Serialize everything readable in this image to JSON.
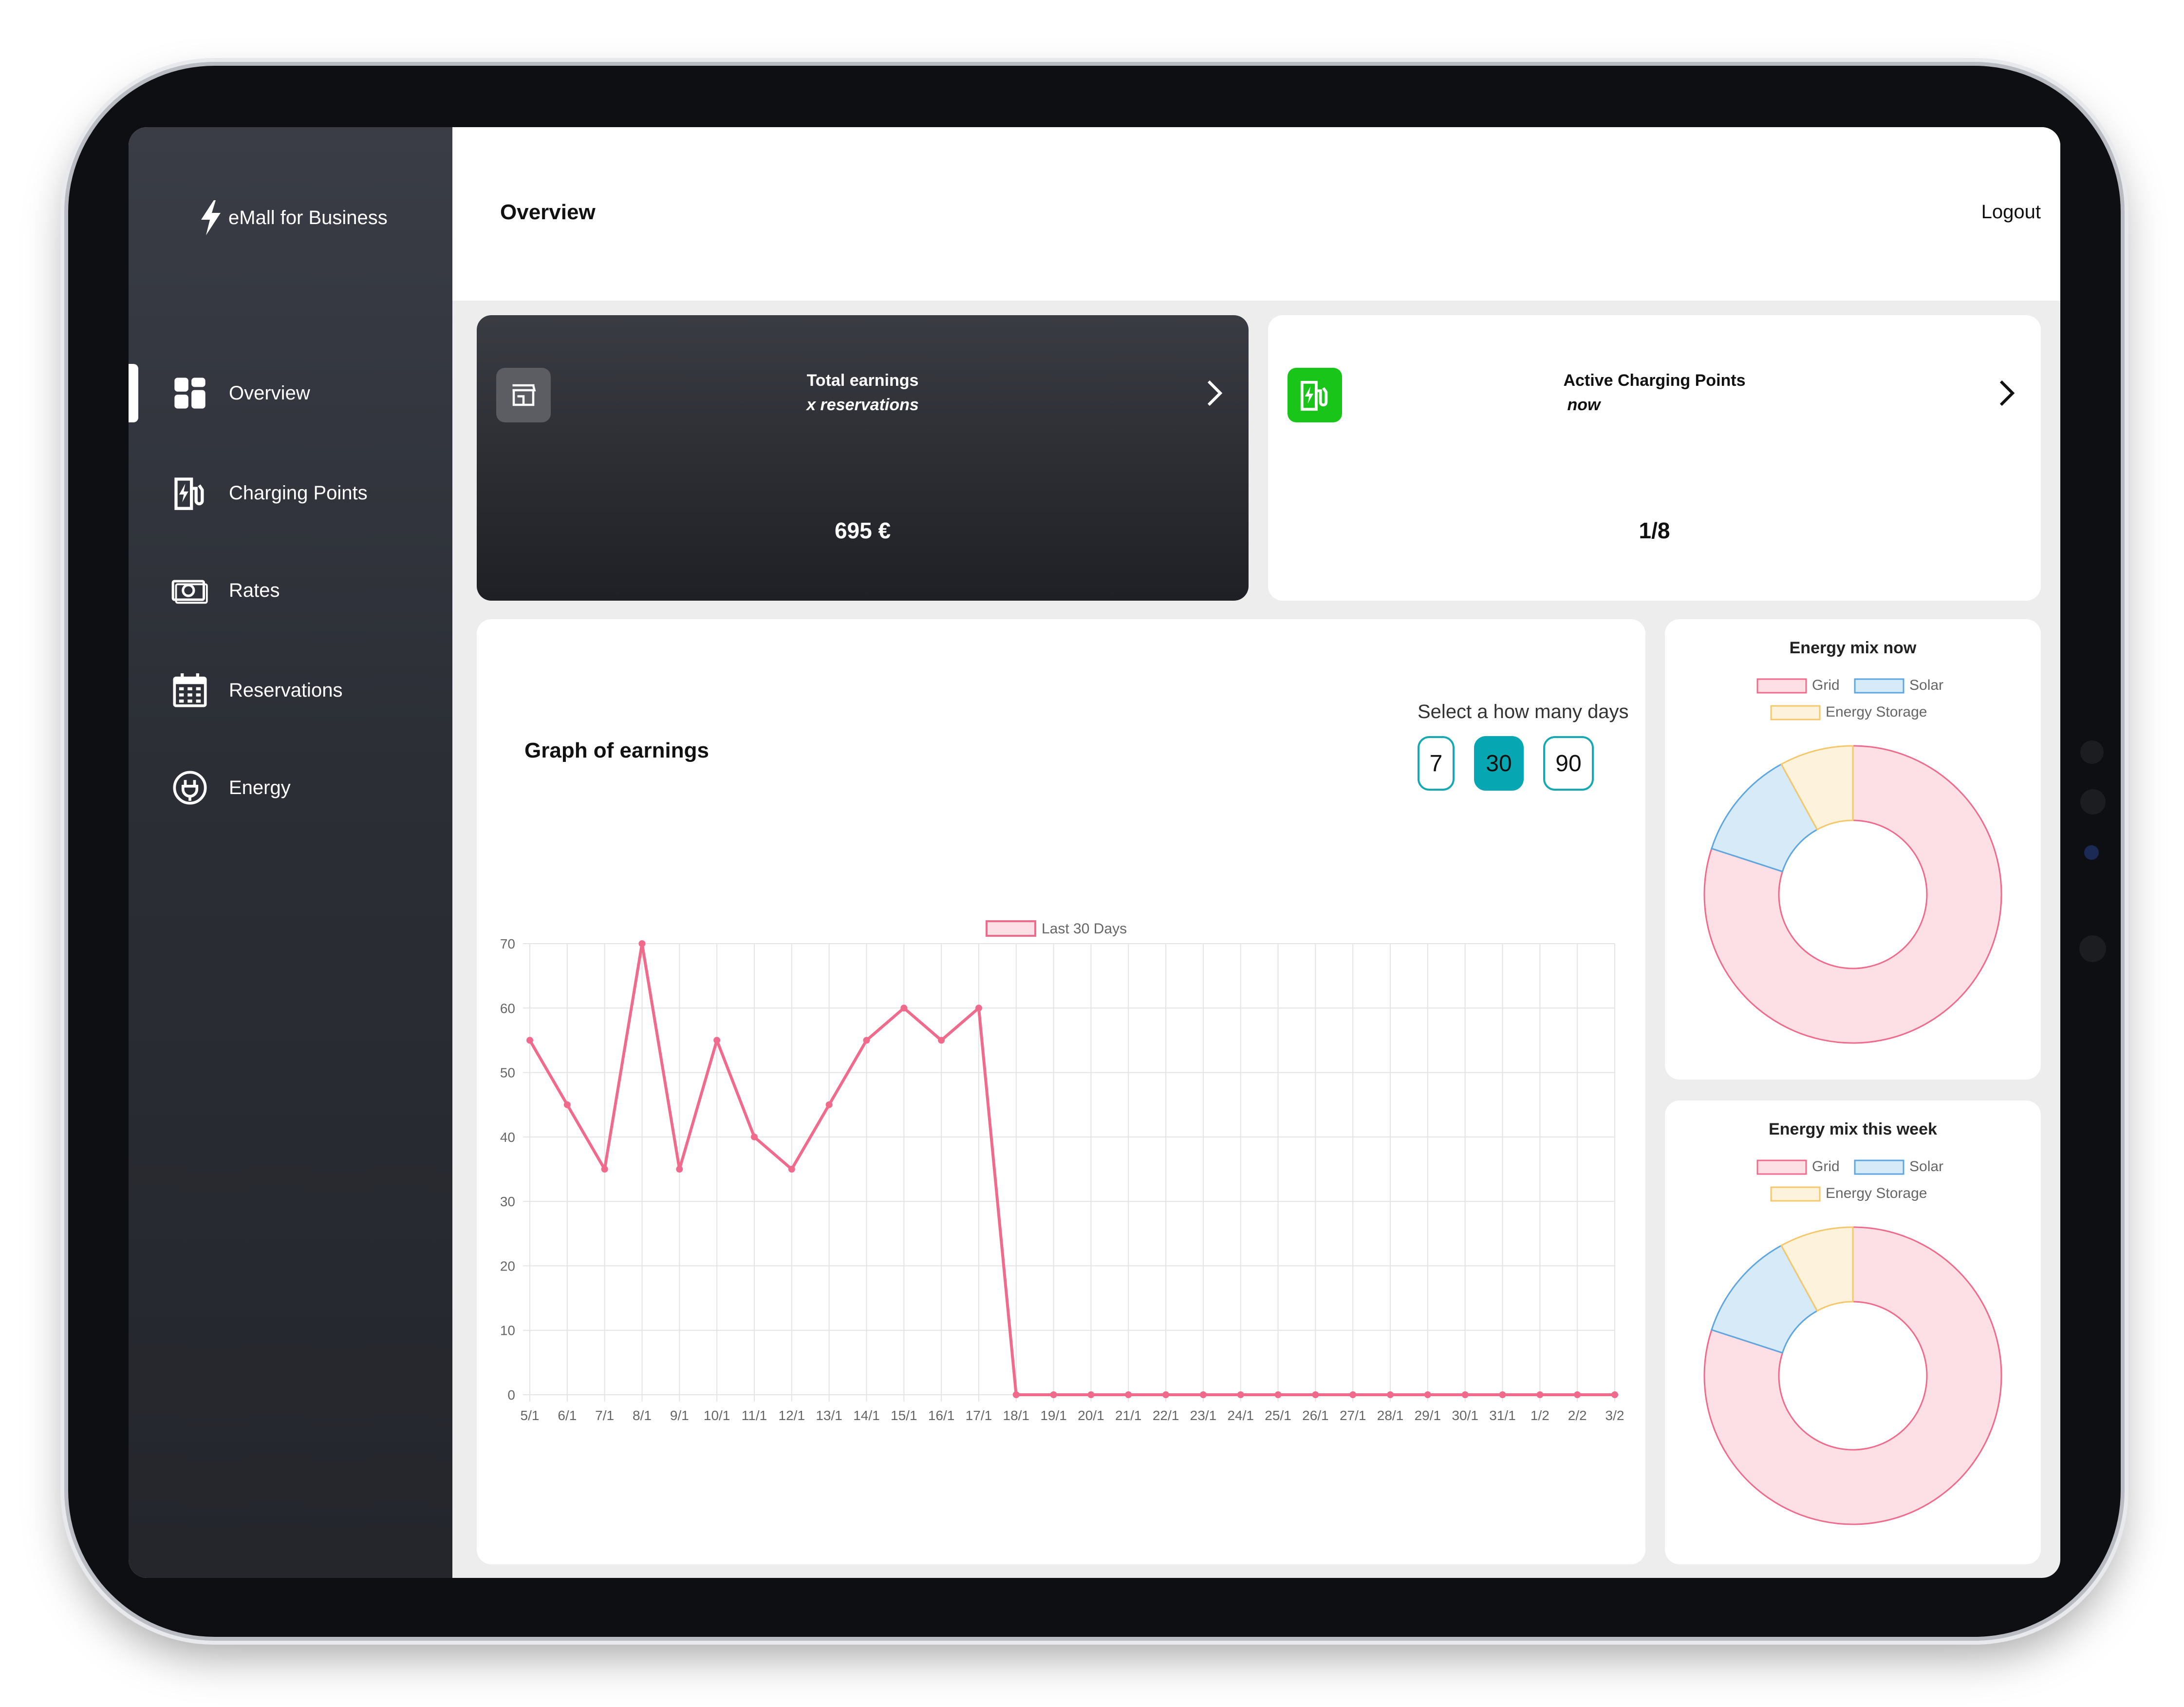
{
  "app": {
    "name": "eMall for Business"
  },
  "header": {
    "title": "Overview",
    "logout_label": "Logout"
  },
  "sidebar": {
    "items": [
      {
        "label": "Overview",
        "icon": "dashboard-icon",
        "active": true
      },
      {
        "label": "Charging Points",
        "icon": "ev-charger-icon",
        "active": false
      },
      {
        "label": "Rates",
        "icon": "cash-icon",
        "active": false
      },
      {
        "label": "Reservations",
        "icon": "calendar-icon",
        "active": false
      },
      {
        "label": "Energy",
        "icon": "plug-icon",
        "active": false
      }
    ]
  },
  "cards": {
    "earnings": {
      "title": "Total earnings",
      "subtitle": "x reservations",
      "value": "695 €",
      "icon": "store-icon"
    },
    "charging": {
      "title": "Active Charging Points",
      "subtitle": "now",
      "value": "1/8",
      "icon": "ev-charger-icon",
      "icon_color": "#19c519"
    }
  },
  "graph": {
    "title": "Graph of earnings",
    "select_label": "Select a how many days",
    "day_options": [
      "7",
      "30",
      "90"
    ],
    "selected": "30"
  },
  "colors": {
    "accent": "#06a6b2",
    "line": "#f06b8b",
    "grid_fill": "#fde0e6",
    "solar_fill": "#d6eaf8",
    "storage_fill": "#fdf3dc"
  },
  "chart_data": [
    {
      "type": "line",
      "series": [
        {
          "name": "Last 30 Days",
          "values": [
            55,
            45,
            35,
            70,
            35,
            55,
            40,
            35,
            45,
            55,
            60,
            55,
            60,
            0,
            0,
            0,
            0,
            0,
            0,
            0,
            0,
            0,
            0,
            0,
            0,
            0,
            0,
            0,
            0,
            0
          ]
        }
      ],
      "categories": [
        "5/1",
        "6/1",
        "7/1",
        "8/1",
        "9/1",
        "10/1",
        "11/1",
        "12/1",
        "13/1",
        "14/1",
        "15/1",
        "16/1",
        "17/1",
        "18/1",
        "19/1",
        "20/1",
        "21/1",
        "22/1",
        "23/1",
        "24/1",
        "25/1",
        "26/1",
        "27/1",
        "28/1",
        "29/1",
        "30/1",
        "31/1",
        "1/2",
        "2/2",
        "3/2"
      ],
      "yticks": [
        0,
        10,
        20,
        30,
        40,
        50,
        60,
        70
      ],
      "ylim": [
        0,
        70
      ],
      "grid": true,
      "legend": "top"
    },
    {
      "type": "pie",
      "title": "Energy mix now",
      "labels": [
        "Grid",
        "Solar",
        "Energy Storage"
      ],
      "values": [
        80,
        12,
        8
      ],
      "legend": "top"
    },
    {
      "type": "pie",
      "title": "Energy mix this week",
      "labels": [
        "Grid",
        "Solar",
        "Energy Storage"
      ],
      "values": [
        80,
        12,
        8
      ],
      "legend": "top"
    }
  ]
}
